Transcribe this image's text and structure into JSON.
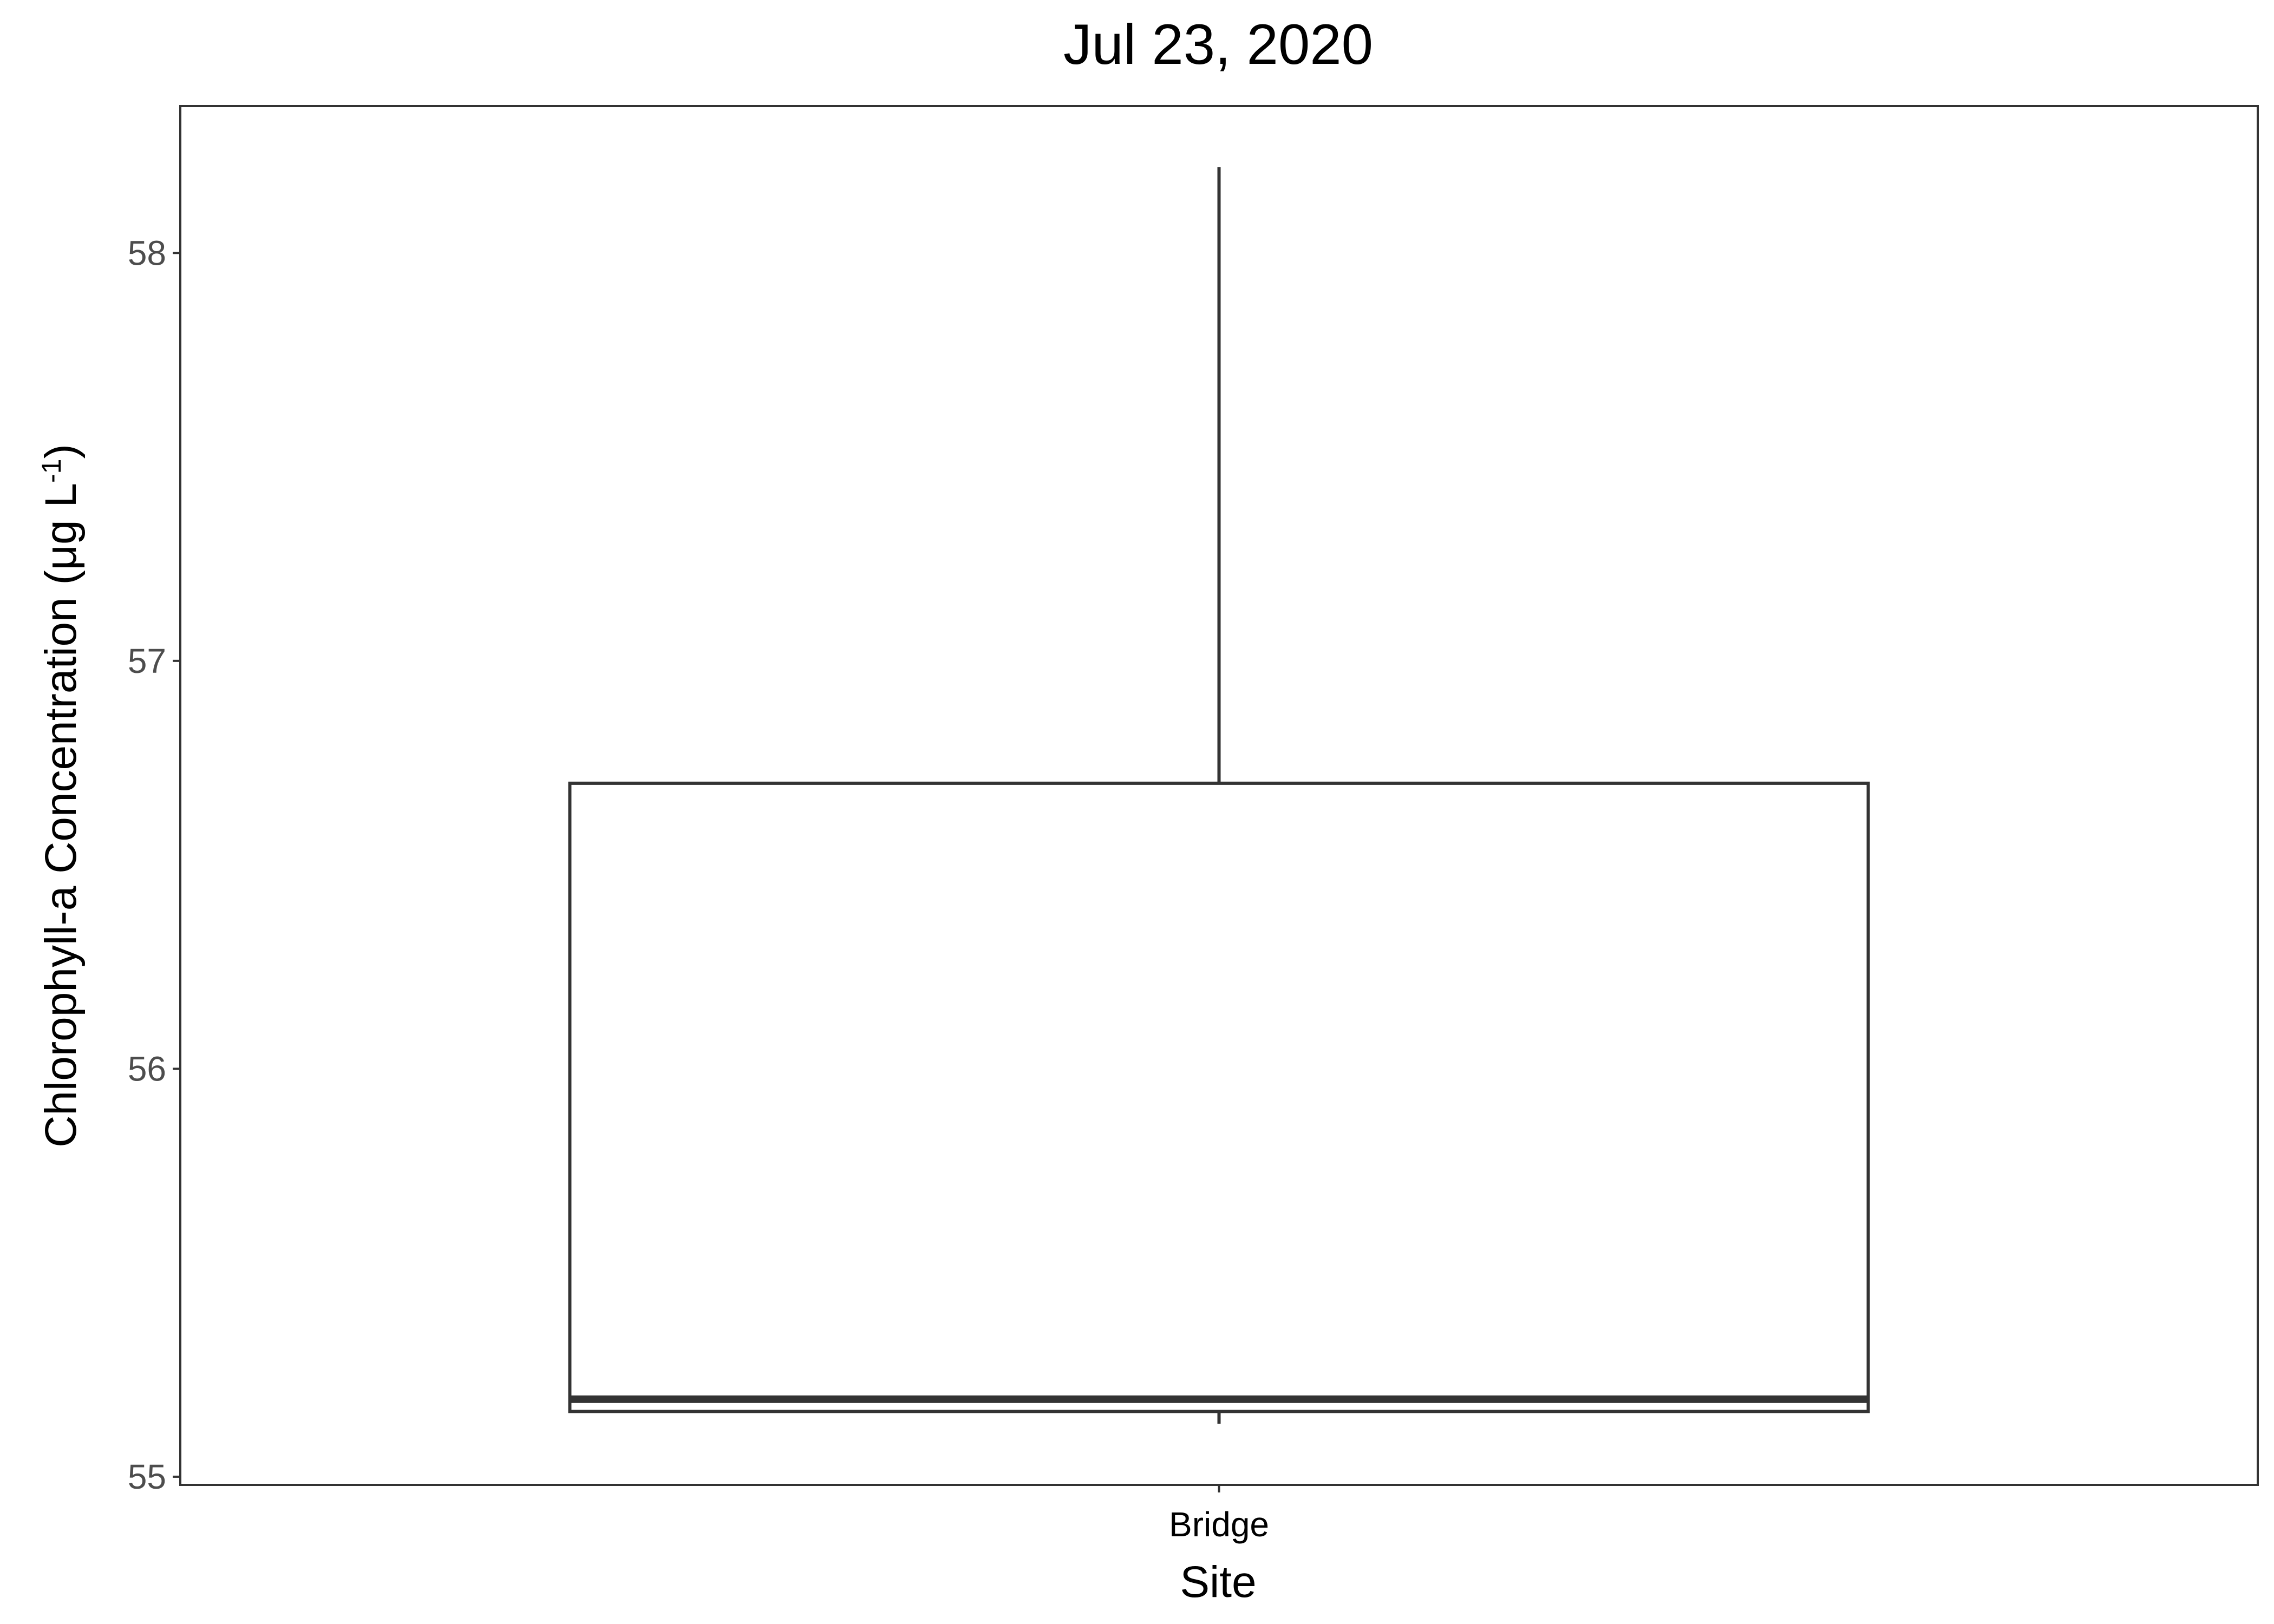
{
  "chart_data": {
    "type": "box",
    "title": "Jul 23, 2020",
    "xlabel": "Site",
    "ylabel": {
      "main": "Chlorophyll-a Concentration (μg L",
      "superscript": "-1",
      "close": ")"
    },
    "categories": [
      "Bridge"
    ],
    "boxes": [
      {
        "category": "Bridge",
        "min": 55.13,
        "q1": 55.16,
        "median": 55.19,
        "q3": 56.7,
        "max": 58.21
      }
    ],
    "ylim": [
      54.98,
      58.36
    ],
    "yticks": [
      55,
      56,
      57,
      58
    ],
    "ytick_labels": [
      "55",
      "56",
      "57",
      "58"
    ],
    "grid": false,
    "legend": "none"
  }
}
